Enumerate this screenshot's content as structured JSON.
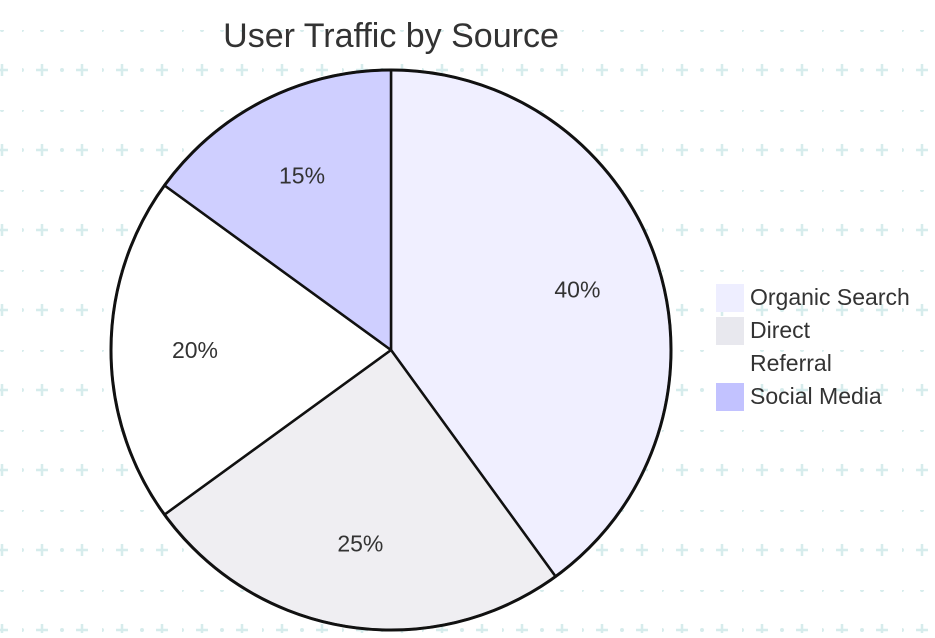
{
  "chart_data": {
    "type": "pie",
    "title": "User Traffic by Source",
    "categories": [
      "Organic Search",
      "Direct",
      "Referral",
      "Social Media"
    ],
    "values": [
      40,
      25,
      20,
      15
    ],
    "value_labels": [
      "40%",
      "25%",
      "20%",
      "15%"
    ],
    "colors": [
      "#f0efff",
      "#efeef2",
      "#ffffff",
      "#cfcfff"
    ],
    "legend_colors": [
      "#eeeeff",
      "#e8e8ee",
      "#ffffff",
      "#c2c2ff"
    ],
    "start_angle_deg": 0,
    "direction": "clockwise",
    "legend_position": "right",
    "background_pattern": "dotted-plus-grid"
  }
}
